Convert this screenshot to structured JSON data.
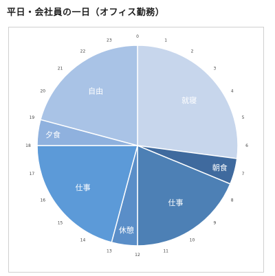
{
  "page": {
    "title": "平日・会社員の一日（オフィス勤務）"
  },
  "chart_data": {
    "type": "pie",
    "start_hour": 0,
    "clockwise": true,
    "hour_ticks": [
      "0",
      "1",
      "2",
      "3",
      "4",
      "5",
      "6",
      "7",
      "8",
      "9",
      "10",
      "11",
      "12",
      "13",
      "14",
      "15",
      "16",
      "17",
      "18",
      "19",
      "20",
      "21",
      "22",
      "23"
    ],
    "slices": [
      {
        "label": "就寝",
        "start": 0,
        "end": 6.5,
        "color": "#c7d6ec"
      },
      {
        "label": "朝食",
        "start": 6.5,
        "end": 7.5,
        "color": "#3f6a9e"
      },
      {
        "label": "仕事",
        "start": 7.5,
        "end": 12,
        "color": "#4d80b5"
      },
      {
        "label": "休憩",
        "start": 12,
        "end": 13,
        "color": "#5a8ec8"
      },
      {
        "label": "仕事",
        "start": 13,
        "end": 18,
        "color": "#5c9ad8"
      },
      {
        "label": "夕食",
        "start": 18,
        "end": 19,
        "color": "#8fb1de"
      },
      {
        "label": "自由",
        "start": 19,
        "end": 24,
        "color": "#a9c3e6"
      }
    ]
  }
}
